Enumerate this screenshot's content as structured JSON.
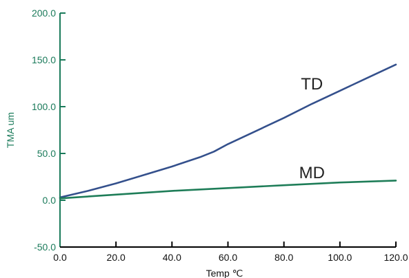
{
  "chart_data": {
    "type": "line",
    "xlabel": "Temp ℃",
    "ylabel": "TMA um",
    "xlim": [
      0,
      120
    ],
    "ylim": [
      -50,
      200
    ],
    "x_ticks": [
      "0.0",
      "20.0",
      "40.0",
      "60.0",
      "80.0",
      "100.0",
      "120.0"
    ],
    "y_ticks": [
      "200.0",
      "150.0",
      "100.0",
      "50.0",
      "0.0",
      "-50.0"
    ],
    "grid": false,
    "axis_colors": {
      "x": "#000000",
      "y": "#1a7a5a"
    },
    "series": [
      {
        "name": "TD",
        "color": "#34508c",
        "x": [
          0,
          10,
          20,
          30,
          40,
          50,
          55,
          60,
          70,
          80,
          90,
          100,
          110,
          120
        ],
        "y": [
          3,
          10,
          18,
          27,
          36,
          46,
          52,
          60,
          74,
          88,
          103,
          117,
          131,
          145
        ]
      },
      {
        "name": "MD",
        "color": "#1e7d58",
        "x": [
          0,
          20,
          40,
          60,
          80,
          100,
          120
        ],
        "y": [
          2,
          6,
          10,
          13,
          16,
          19,
          21
        ]
      }
    ]
  }
}
